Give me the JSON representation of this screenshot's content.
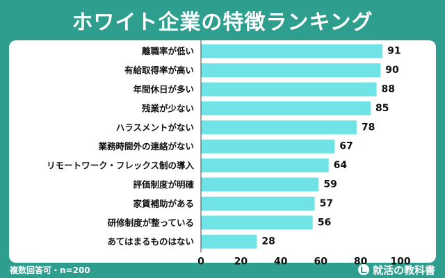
{
  "title": "ホワイト企業の特徴ランキング",
  "footer_note": "複数回答可・n=200",
  "brand": {
    "name": "就活の教科書",
    "icon": "book-check-icon"
  },
  "colors": {
    "background": "#2e9e8f",
    "bar": "#6fe3e6",
    "card": "#ffffff"
  },
  "chart_data": {
    "type": "bar",
    "orientation": "horizontal",
    "categories": [
      "離職率が低い",
      "有給取得率が高い",
      "年間休日が多い",
      "残業が少ない",
      "ハラスメントがない",
      "業務時間外の連絡がない",
      "リモートワーク・フレックス制の導入",
      "評価制度が明確",
      "家賃補助がある",
      "研修制度が整っている",
      "あてはまるものはない"
    ],
    "values": [
      91,
      90,
      88,
      85,
      78,
      67,
      64,
      59,
      57,
      56,
      28
    ],
    "xlim": [
      0,
      100
    ],
    "xticks": [
      "0",
      "20",
      "40",
      "60",
      "80",
      "100"
    ],
    "grid": false
  }
}
